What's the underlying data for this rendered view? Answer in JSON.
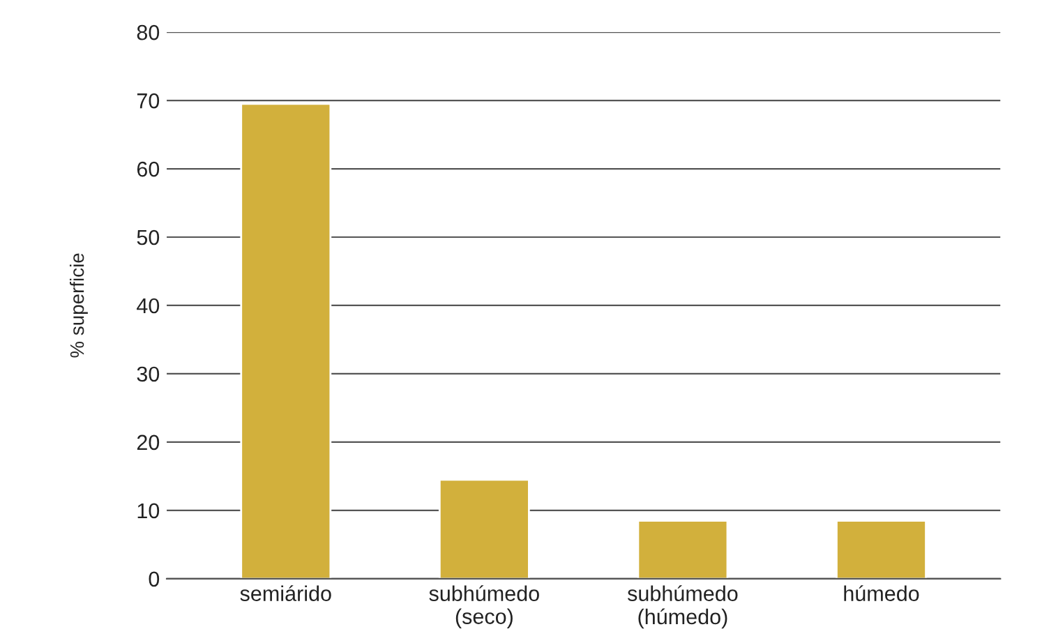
{
  "chart_data": {
    "type": "bar",
    "ylabel": "% superficie",
    "categories": [
      "semiárido",
      "subhúmedo\n(seco)",
      "subhúmedo\n(húmedo)",
      "húmedo"
    ],
    "values": [
      69.5,
      14.5,
      8.5,
      8.5
    ],
    "color": "#d2b03c",
    "ylim": [
      0,
      80
    ],
    "yticks": [
      0,
      10,
      20,
      30,
      40,
      50,
      60,
      70,
      80
    ],
    "grid": "y"
  }
}
